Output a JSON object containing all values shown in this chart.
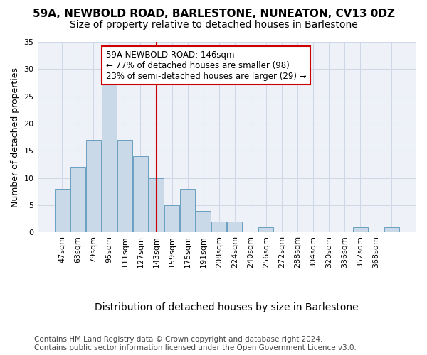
{
  "title": "59A, NEWBOLD ROAD, BARLESTONE, NUNEATON, CV13 0DZ",
  "subtitle": "Size of property relative to detached houses in Barlestone",
  "xlabel": "Distribution of detached houses by size in Barlestone",
  "ylabel": "Number of detached properties",
  "bar_values": [
    8,
    12,
    17,
    28,
    17,
    14,
    10,
    5,
    8,
    4,
    2,
    2,
    0,
    1,
    0,
    0,
    0,
    0,
    0,
    1,
    0,
    1
  ],
  "bar_labels": [
    "47sqm",
    "63sqm",
    "79sqm",
    "95sqm",
    "111sqm",
    "127sqm",
    "143sqm",
    "159sqm",
    "175sqm",
    "191sqm",
    "208sqm",
    "224sqm",
    "240sqm",
    "256sqm",
    "272sqm",
    "288sqm",
    "304sqm",
    "320sqm",
    "336sqm",
    "352sqm",
    "368sqm",
    ""
  ],
  "bar_color": "#c9d9e8",
  "bar_edge_color": "#6a9fc0",
  "grid_color": "#d0d8e8",
  "background_color": "#eef2f8",
  "vline_x": 6,
  "vline_color": "#cc0000",
  "annotation_text": "59A NEWBOLD ROAD: 146sqm\n← 77% of detached houses are smaller (98)\n23% of semi-detached houses are larger (29) →",
  "annotation_box_color": "#ffffff",
  "annotation_box_edge_color": "#cc0000",
  "ylim": [
    0,
    35
  ],
  "yticks": [
    0,
    5,
    10,
    15,
    20,
    25,
    30,
    35
  ],
  "footer_line1": "Contains HM Land Registry data © Crown copyright and database right 2024.",
  "footer_line2": "Contains public sector information licensed under the Open Government Licence v3.0.",
  "title_fontsize": 11,
  "subtitle_fontsize": 10,
  "xlabel_fontsize": 10,
  "ylabel_fontsize": 9,
  "tick_fontsize": 8,
  "annotation_fontsize": 8.5,
  "footer_fontsize": 7.5
}
